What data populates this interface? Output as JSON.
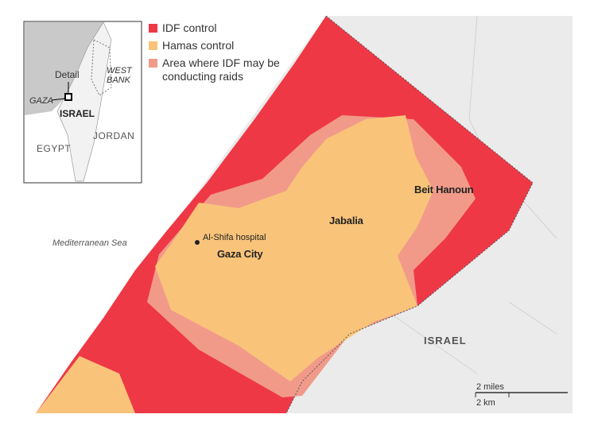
{
  "legend": [
    {
      "label": "IDF control",
      "color": "#ee3846"
    },
    {
      "label": "Hamas control",
      "color": "#f9c47a"
    },
    {
      "label": "Area where IDF may be conducting raids",
      "color": "#f19a8a"
    }
  ],
  "inset": {
    "detail": "Detail",
    "west_bank": "WEST BANK",
    "gaza": "GAZA",
    "israel": "ISRAEL",
    "egypt": "EGYPT",
    "jordan": "JORDAN"
  },
  "places": {
    "sea": "Mediterranean Sea",
    "hospital": "Al-Shifa hospital",
    "gaza_city": "Gaza City",
    "jabalia": "Jabalia",
    "beit_hanoun": "Beit Hanoun",
    "israel": "ISRAEL"
  },
  "scale": {
    "miles": "2 miles",
    "km": "2 km"
  }
}
